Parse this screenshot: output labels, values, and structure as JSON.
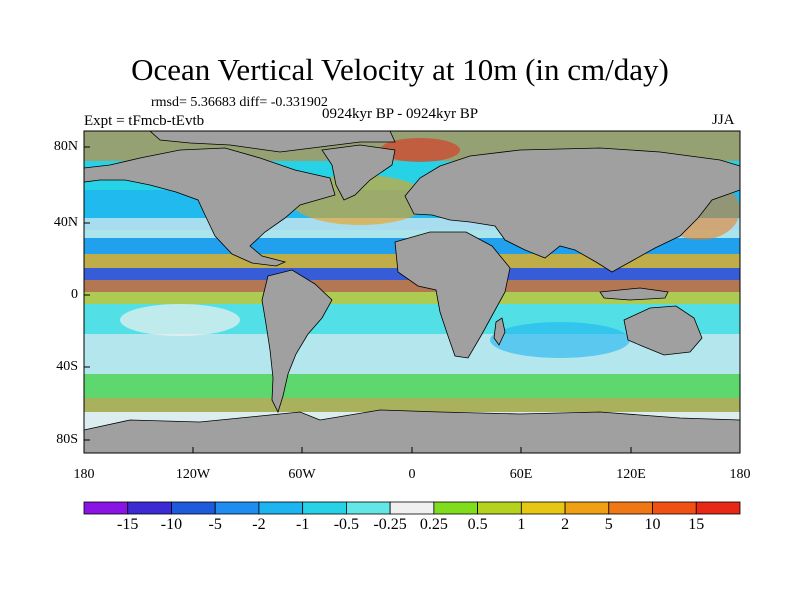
{
  "map": {
    "title": "Ocean Vertical Velocity at 10m (in cm/day)",
    "stats": "rmsd= 5.36683  diff= -0.331902",
    "experiment": "Expt = tFmcb-tEvtb",
    "period": "0924kyr BP - 0924kyr BP",
    "season": "JJA",
    "lat_labels": [
      "80N",
      "40N",
      "0",
      "40S",
      "80S"
    ],
    "lon_labels": [
      "180",
      "120W",
      "60W",
      "0",
      "60E",
      "120E",
      "180"
    ],
    "land_color": "#a0a0a0",
    "colorbar": {
      "labels": [
        "-15",
        "-10",
        "-5",
        "-2",
        "-1",
        "-0.5",
        "-0.25",
        "0.25",
        "0.5",
        "1",
        "2",
        "5",
        "10",
        "15"
      ],
      "colors": [
        "#8a14e6",
        "#3c2ad2",
        "#1e5adc",
        "#1e8cf0",
        "#1eb4f0",
        "#28d2e6",
        "#64e6e6",
        "#f0f0f0",
        "#82dc1e",
        "#b4d21e",
        "#e6c814",
        "#f0a014",
        "#f07814",
        "#f05014",
        "#e62814"
      ]
    }
  }
}
